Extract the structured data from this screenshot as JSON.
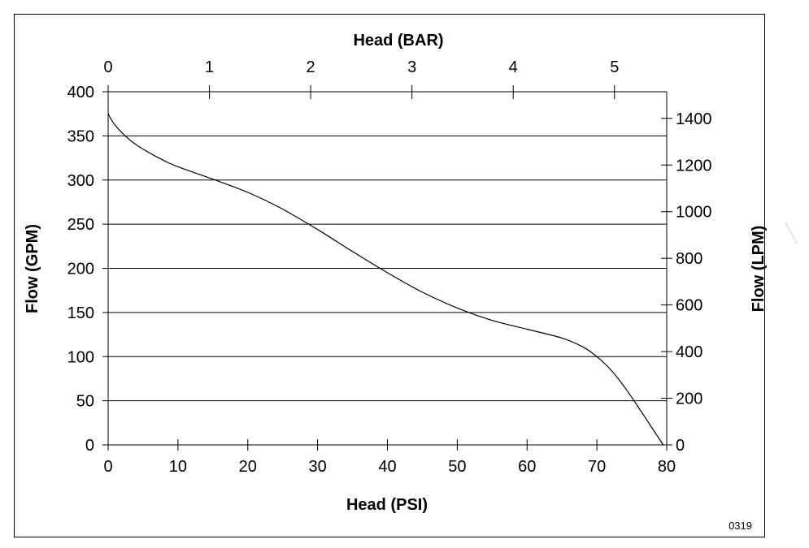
{
  "chart_data": {
    "type": "line",
    "x_label_bottom": "Head (PSI)",
    "x_label_top": "Head (BAR)",
    "y_label_left": "Flow (GPM)",
    "y_label_right": "Flow (LPM)",
    "figure_code": "0319",
    "x_range": [
      0,
      80
    ],
    "y_range": [
      0,
      400
    ],
    "x_ticks": [
      0,
      10,
      20,
      30,
      40,
      50,
      60,
      70,
      80
    ],
    "y_ticks": [
      0,
      50,
      100,
      150,
      200,
      250,
      300,
      350,
      400
    ],
    "top_ticks_bar": [
      0,
      1,
      2,
      3,
      4,
      5
    ],
    "right_ticks_lpm": [
      0,
      200,
      400,
      600,
      800,
      1000,
      1200,
      1400
    ],
    "grid": "horizontal",
    "series": [
      {
        "x": [
          0,
          1,
          3,
          5,
          8,
          10,
          15,
          20,
          25,
          30,
          35,
          40,
          45,
          50,
          55,
          60,
          65,
          68,
          70,
          72,
          74,
          76,
          78,
          79.5
        ],
        "y": [
          375,
          362,
          346,
          335,
          322,
          315,
          301,
          286,
          267,
          244,
          219,
          195,
          173,
          155,
          141,
          131,
          121,
          111,
          100,
          85,
          65,
          42,
          18,
          0
        ]
      }
    ]
  }
}
